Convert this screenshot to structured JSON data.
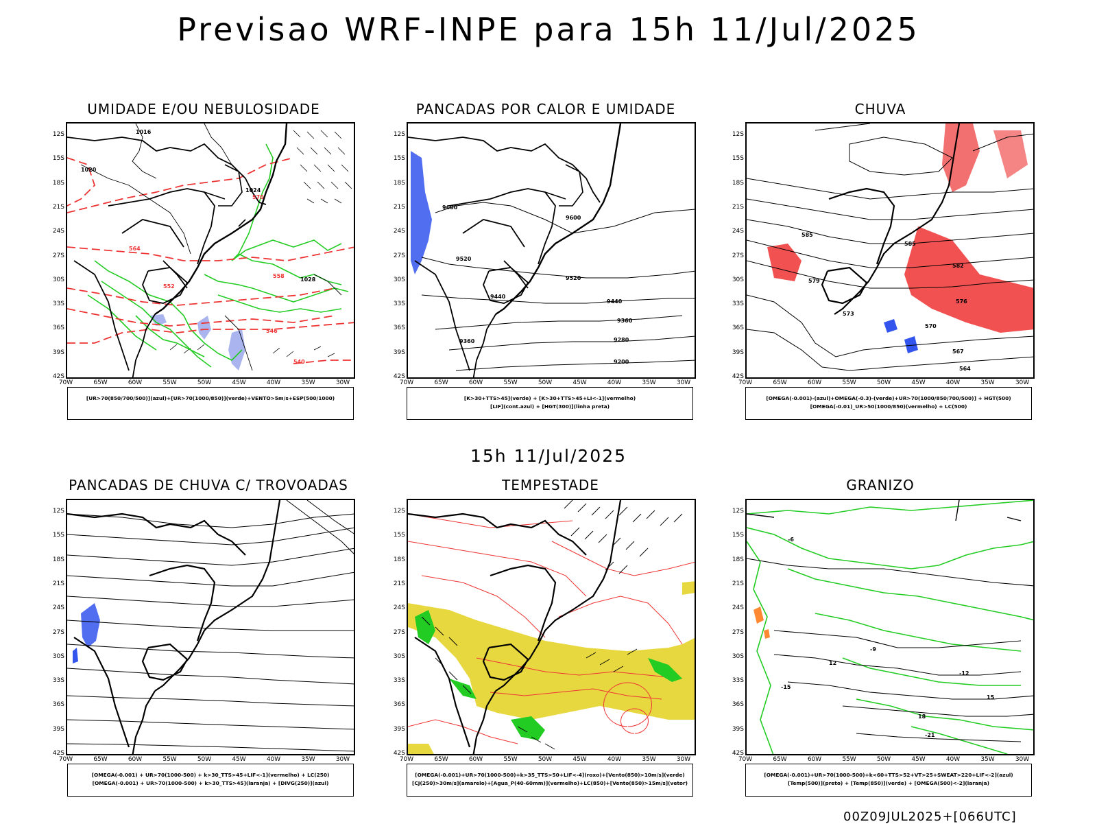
{
  "title": "Previsao WRF-INPE  para 15h 11/Jul/2025",
  "subtitle": "15h 11/Jul/2025",
  "run_info": "00Z09JUL2025+[066UTC]",
  "axes": {
    "lat_labels": [
      "12S",
      "15S",
      "18S",
      "21S",
      "24S",
      "27S",
      "30S",
      "33S",
      "36S",
      "39S",
      "42S"
    ],
    "lon_labels": [
      "70W",
      "65W",
      "60W",
      "55W",
      "50W",
      "45W",
      "40W",
      "35W",
      "30W"
    ]
  },
  "colors": {
    "black": "#000000",
    "green": "#22cc22",
    "red": "#ee3333",
    "blue": "#3355ee",
    "yellow": "#e8d840",
    "lightblue": "#aab4ee"
  },
  "panels": [
    {
      "id": "umidade",
      "title": "UMIDADE E/OU NEBULOSIDADE",
      "legend": [
        "[UR>70(850/700/500)](azul)+[UR>70(1000/850)](verde)+VENTO>5m/s+ESP(500/1000)"
      ],
      "contour_labels": [
        "1016",
        "1020",
        "1024",
        "1028",
        "564",
        "570",
        "558",
        "552",
        "546",
        "540"
      ]
    },
    {
      "id": "pancadas_calor",
      "title": "PANCADAS POR CALOR E UMIDADE",
      "legend": [
        "[K>30+TTS>45](verde) + [K>30+TTS>45+LI<-1](vermelho)",
        "[LIF](cont.azul) + [HGT(300)](linha preta)"
      ],
      "contour_labels": [
        "9600",
        "9600",
        "9520",
        "9520",
        "9440",
        "9440",
        "9360",
        "9360",
        "9280",
        "9200"
      ]
    },
    {
      "id": "chuva",
      "title": "CHUVA",
      "legend": [
        "[OMEGA(-0.001)-(azul)+OMEGA(-0.3)-(verde)+UR>70(1000/850/700/500)] + HGT(500)",
        "[OMEGA(-0.01)_UR>50(1000/850)(vermelho) + LC(500)"
      ],
      "contour_labels": [
        "585",
        "585",
        "582",
        "579",
        "576",
        "573",
        "570",
        "567",
        "564"
      ]
    },
    {
      "id": "trovoadas",
      "title": "PANCADAS DE CHUVA C/ TROVOADAS",
      "legend": [
        "[OMEGA(-0.001) + UR>70(1000-500) + k>30_TTS>45+LIF<-1](vermelho) + LC(250)",
        "[OMEGA(-0.001) + UR>70(1000-500) + k>30_TTS>45](laranja) + [DIVG(250)](azul)"
      ],
      "contour_labels": []
    },
    {
      "id": "tempestade",
      "title": "TEMPESTADE",
      "legend": [
        "[OMEGA(-0.001)+UR>70(1000-500)+k>35_TTS>50+LIF<-4](roxo)+[Vento(850)>10m/s](verde)",
        "[CJ(250)>30m/s](amarelo)+[Agua_P(40-60mm)](vermelho)+LC(850)+[Vento(850)>15m/s](vetor)"
      ],
      "contour_labels": []
    },
    {
      "id": "granizo",
      "title": "GRANIZO",
      "legend": [
        "[OMEGA(-0.001)+UR>70(1000-500)+k<60+TTS>52+VT>25+SWEAT>220+LIF<-2](azul)",
        "[Temp(500)](preto) + [Temp(850)](verde) + [OMEGA(500)<-2](laranja)"
      ],
      "contour_labels": [
        "-6",
        "-9",
        "12",
        "-12",
        "15",
        "18",
        "-21",
        "-15"
      ]
    }
  ]
}
